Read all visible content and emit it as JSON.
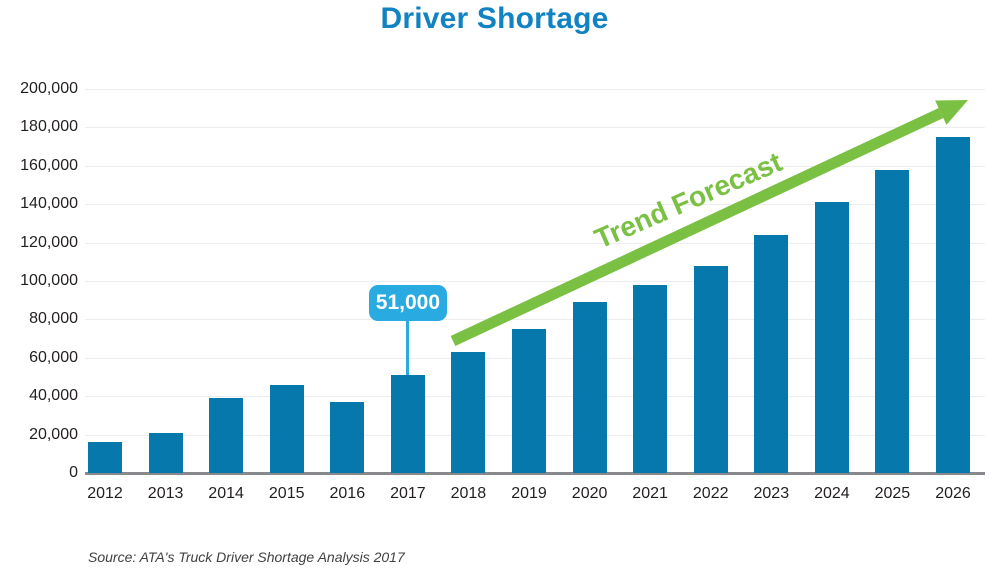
{
  "page": {
    "background": "#ffffff"
  },
  "chart_data": {
    "type": "bar",
    "title": "Driver Shortage",
    "categories": [
      "2012",
      "2013",
      "2014",
      "2015",
      "2016",
      "2017",
      "2018",
      "2019",
      "2020",
      "2021",
      "2022",
      "2023",
      "2024",
      "2025",
      "2026"
    ],
    "values": [
      16000,
      21000,
      39000,
      46000,
      37000,
      51000,
      63000,
      75000,
      89000,
      98000,
      108000,
      124000,
      141000,
      158000,
      175000
    ],
    "ylabel": "",
    "xlabel": "",
    "ylim": [
      0,
      200000
    ],
    "ytick_step": 20000,
    "y_tick_labels": [
      "0",
      "20,000",
      "40,000",
      "60,000",
      "80,000",
      "100,000",
      "120,000",
      "140,000",
      "160,000",
      "180,000",
      "200,000"
    ],
    "grid": "horizontal",
    "legend": "none",
    "annotation": {
      "target_year": "2017",
      "label": "51,000"
    },
    "trend_label": "Trend Forecast",
    "source": "Source: ATA's Truck Driver Shortage Analysis 2017",
    "colors": {
      "bar": "#0678AB",
      "title": "#1182C2",
      "callout_fill": "#29ABE2",
      "callout_text": "#FFFFFF",
      "trend_green": "#7AC143",
      "gridline": "#ECEDEE",
      "axis_line": "#87898C",
      "tick_text": "#231F20",
      "source_text": "#414042"
    }
  }
}
